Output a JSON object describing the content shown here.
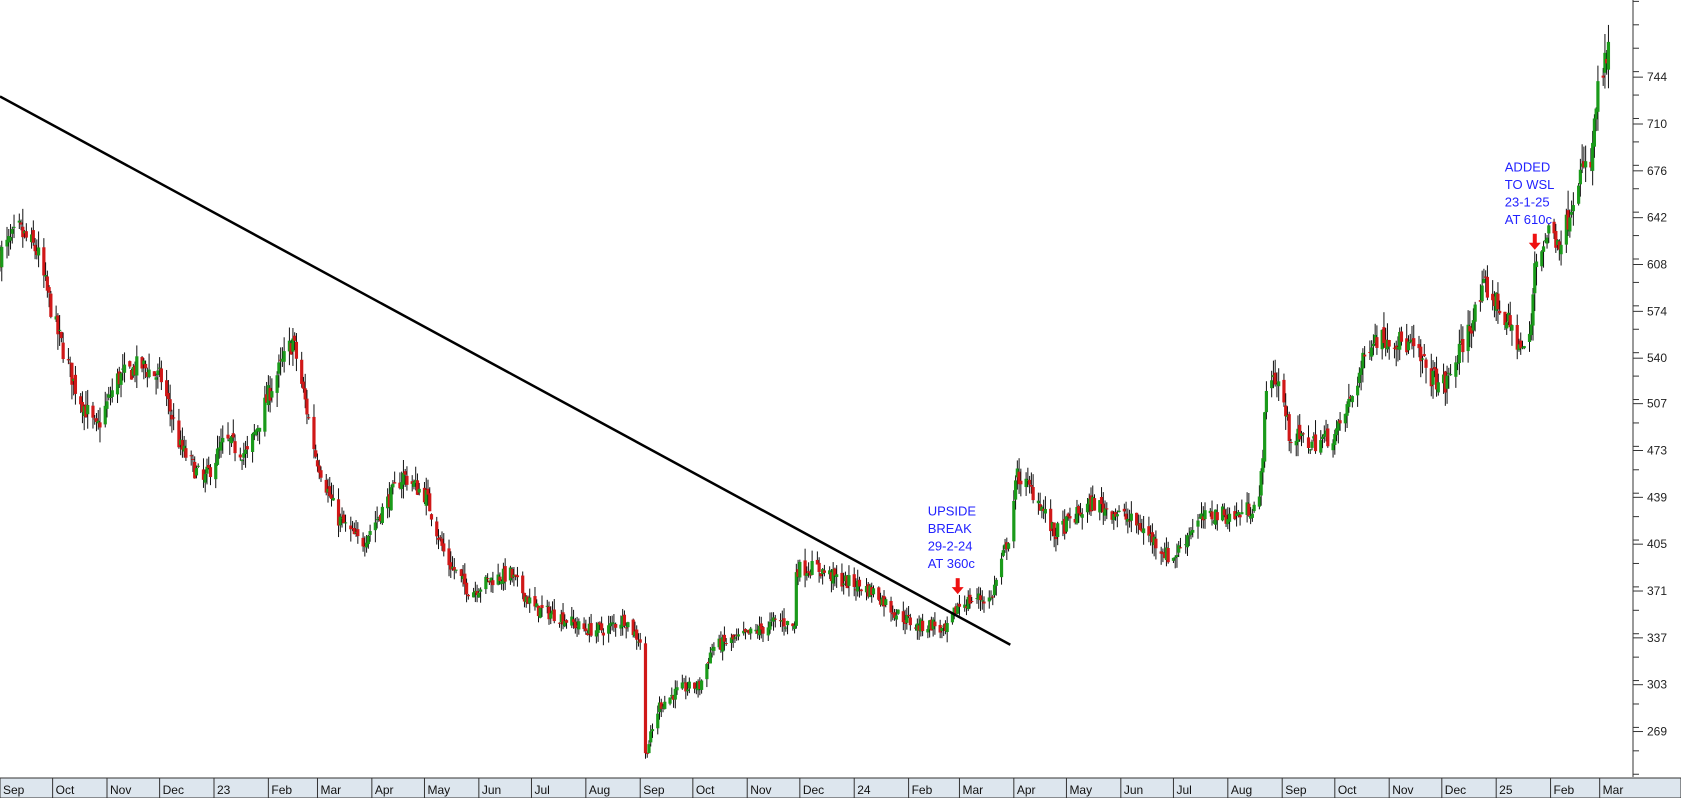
{
  "chart_data": {
    "type": "candlestick",
    "title": "",
    "xlabel": "",
    "ylabel": "",
    "ylim": [
      236,
      800
    ],
    "y_ticks": [
      744,
      710,
      676,
      642,
      608,
      574,
      540,
      507,
      473,
      439,
      405,
      371,
      337,
      303,
      269
    ],
    "x_ticks": [
      "Sep",
      "Oct",
      "Nov",
      "Dec",
      "23",
      "Feb",
      "Mar",
      "Apr",
      "May",
      "Jun",
      "Jul",
      "Aug",
      "Sep",
      "Oct",
      "Nov",
      "Dec",
      "24",
      "Feb",
      "Mar",
      "Apr",
      "May",
      "Jun",
      "Jul",
      "Aug",
      "Sep",
      "Oct",
      "Nov",
      "Dec",
      "25",
      "Feb",
      "Mar"
    ],
    "x_range": [
      "2022-09-01",
      "2025-03-20"
    ],
    "colors": {
      "up": "#1a9a1a",
      "down": "#d01818",
      "wick": "#111111",
      "trendline": "#000000",
      "annotation": "#2222ff",
      "arrow": "#ee1111"
    },
    "close_path": [
      [
        "2022-09-01",
        615
      ],
      [
        "2022-09-12",
        632
      ],
      [
        "2022-09-22",
        618
      ],
      [
        "2022-10-03",
        562
      ],
      [
        "2022-10-15",
        515
      ],
      [
        "2022-10-26",
        488
      ],
      [
        "2022-11-07",
        525
      ],
      [
        "2022-11-20",
        535
      ],
      [
        "2022-12-02",
        525
      ],
      [
        "2022-12-13",
        475
      ],
      [
        "2022-12-26",
        450
      ],
      [
        "2023-01-07",
        480
      ],
      [
        "2023-01-20",
        470
      ],
      [
        "2023-02-03",
        520
      ],
      [
        "2023-02-15",
        553
      ],
      [
        "2023-02-28",
        470
      ],
      [
        "2023-03-12",
        425
      ],
      [
        "2023-03-26",
        405
      ],
      [
        "2023-04-08",
        432
      ],
      [
        "2023-04-19",
        455
      ],
      [
        "2023-05-02",
        440
      ],
      [
        "2023-05-13",
        395
      ],
      [
        "2023-05-27",
        370
      ],
      [
        "2023-06-09",
        380
      ],
      [
        "2023-06-19",
        383
      ],
      [
        "2023-07-03",
        358
      ],
      [
        "2023-07-17",
        353
      ],
      [
        "2023-07-31",
        343
      ],
      [
        "2023-08-12",
        343
      ],
      [
        "2023-08-23",
        351
      ],
      [
        "2023-09-02",
        333
      ],
      [
        "2023-09-04",
        252
      ],
      [
        "2023-09-12",
        288
      ],
      [
        "2023-09-24",
        300
      ],
      [
        "2023-10-05",
        302
      ],
      [
        "2023-10-12",
        330
      ],
      [
        "2023-10-28",
        337
      ],
      [
        "2023-11-09",
        343
      ],
      [
        "2023-11-19",
        350
      ],
      [
        "2023-11-28",
        345
      ],
      [
        "2023-11-29",
        387
      ],
      [
        "2023-12-10",
        388
      ],
      [
        "2023-12-22",
        380
      ],
      [
        "2024-01-03",
        375
      ],
      [
        "2024-01-13",
        370
      ],
      [
        "2024-01-24",
        356
      ],
      [
        "2024-02-06",
        345
      ],
      [
        "2024-02-15",
        347
      ],
      [
        "2024-02-22",
        340
      ],
      [
        "2024-02-29",
        360
      ],
      [
        "2024-03-10",
        366
      ],
      [
        "2024-03-19",
        365
      ],
      [
        "2024-03-29",
        410
      ],
      [
        "2024-04-03",
        455
      ],
      [
        "2024-04-14",
        440
      ],
      [
        "2024-04-24",
        412
      ],
      [
        "2024-05-06",
        425
      ],
      [
        "2024-05-16",
        435
      ],
      [
        "2024-05-29",
        428
      ],
      [
        "2024-06-12",
        418
      ],
      [
        "2024-06-22",
        405
      ],
      [
        "2024-06-30",
        393
      ],
      [
        "2024-07-13",
        420
      ],
      [
        "2024-07-25",
        427
      ],
      [
        "2024-08-05",
        425
      ],
      [
        "2024-08-19",
        435
      ],
      [
        "2024-08-24",
        533
      ],
      [
        "2024-08-31",
        520
      ],
      [
        "2024-09-05",
        485
      ],
      [
        "2024-09-17",
        478
      ],
      [
        "2024-10-02",
        485
      ],
      [
        "2024-10-10",
        510
      ],
      [
        "2024-10-22",
        555
      ],
      [
        "2024-11-02",
        555
      ],
      [
        "2024-11-14",
        548
      ],
      [
        "2024-11-25",
        527
      ],
      [
        "2024-12-03",
        520
      ],
      [
        "2024-12-12",
        547
      ],
      [
        "2024-12-26",
        592
      ],
      [
        "2025-01-05",
        572
      ],
      [
        "2025-01-16",
        545
      ],
      [
        "2025-01-21",
        560
      ],
      [
        "2025-01-23",
        610
      ],
      [
        "2025-01-31",
        632
      ],
      [
        "2025-02-08",
        625
      ],
      [
        "2025-02-16",
        672
      ],
      [
        "2025-02-24",
        680
      ],
      [
        "2025-02-28",
        735
      ],
      [
        "2025-03-06",
        760
      ]
    ],
    "trendline": {
      "from": [
        "2022-09-01",
        730
      ],
      "to": [
        "2024-03-30",
        332
      ]
    },
    "annotations": [
      {
        "lines": [
          "UPSIDE",
          "BREAK",
          "29-2-24",
          "AT 360c"
        ],
        "at": [
          "2024-02-29",
          360
        ]
      },
      {
        "lines": [
          "ADDED",
          "TO WSL",
          "23-1-25",
          "AT 610c"
        ],
        "at": [
          "2025-01-23",
          610
        ]
      }
    ]
  }
}
